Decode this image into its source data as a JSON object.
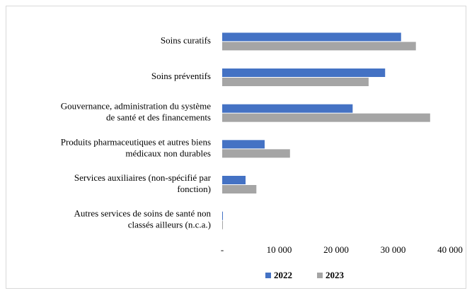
{
  "chart_data": {
    "type": "bar",
    "orientation": "horizontal",
    "categories": [
      "Soins curatifs",
      "Soins préventifs",
      "Gouvernance, administration du système\nde santé et des financements",
      "Produits pharmaceutiques et autres biens\nmédicaux non durables",
      "Services auxiliaires (non-spécifié par\nfonction)",
      "Autres services de soins de santé non\nclassés ailleurs (n.c.a.)"
    ],
    "series": [
      {
        "name": "2022",
        "color": "#4472c4",
        "values": [
          31400,
          28600,
          22900,
          7450,
          4100,
          100
        ]
      },
      {
        "name": "2023",
        "color": "#a5a5a5",
        "values": [
          34000,
          25700,
          36500,
          11900,
          6000,
          100
        ]
      }
    ],
    "xlim": [
      0,
      40000
    ],
    "xticks": [
      {
        "value": 0,
        "label": "-"
      },
      {
        "value": 10000,
        "label": "10 000"
      },
      {
        "value": 20000,
        "label": "20 000"
      },
      {
        "value": 30000,
        "label": "30 000"
      },
      {
        "value": 40000,
        "label": "40 000"
      }
    ],
    "grid": false,
    "legend": "bottom"
  }
}
